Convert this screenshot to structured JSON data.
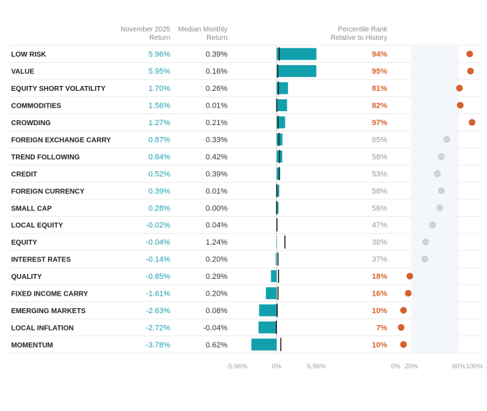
{
  "chart_data": {
    "type": "table",
    "headers": {
      "return_line1": "November 2025",
      "return_line2": "Return",
      "median_line1": "Median Monthly",
      "median_line2": "Return",
      "percentile_line1": "Percentile Rank",
      "percentile_line2": "Relative to History"
    },
    "bar_axis": {
      "range": [
        -5.96,
        5.96
      ],
      "ticks": [
        {
          "value": -5.96,
          "label": "-5.96%"
        },
        {
          "value": 0,
          "label": "0%"
        },
        {
          "value": 5.96,
          "label": "5.96%"
        }
      ]
    },
    "percentile_axis": {
      "range": [
        0,
        100
      ],
      "shaded_band": [
        20,
        80
      ],
      "ticks": [
        {
          "value": 0,
          "label": "0%"
        },
        {
          "value": 20,
          "label": "20%"
        },
        {
          "value": 80,
          "label": "80%"
        },
        {
          "value": 100,
          "label": "100%"
        }
      ]
    },
    "rows": [
      {
        "name": "LOW RISK",
        "return": 5.96,
        "return_label": "5.96%",
        "median": 0.39,
        "median_label": "0.39%",
        "percentile": 94,
        "percentile_label": "94%"
      },
      {
        "name": "VALUE",
        "return": 5.95,
        "return_label": "5.95%",
        "median": 0.16,
        "median_label": "0.16%",
        "percentile": 95,
        "percentile_label": "95%"
      },
      {
        "name": "EQUITY SHORT VOLATILITY",
        "return": 1.7,
        "return_label": "1.70%",
        "median": 0.26,
        "median_label": "0.26%",
        "percentile": 81,
        "percentile_label": "81%"
      },
      {
        "name": "COMMODITIES",
        "return": 1.56,
        "return_label": "1.56%",
        "median": 0.01,
        "median_label": "0.01%",
        "percentile": 82,
        "percentile_label": "82%"
      },
      {
        "name": "CROWDING",
        "return": 1.27,
        "return_label": "1.27%",
        "median": 0.21,
        "median_label": "0.21%",
        "percentile": 97,
        "percentile_label": "97%"
      },
      {
        "name": "FOREIGN EXCHANGE CARRY",
        "return": 0.87,
        "return_label": "0.87%",
        "median": 0.33,
        "median_label": "0.33%",
        "percentile": 65,
        "percentile_label": "65%"
      },
      {
        "name": "TREND FOLLOWING",
        "return": 0.84,
        "return_label": "0.84%",
        "median": 0.42,
        "median_label": "0.42%",
        "percentile": 58,
        "percentile_label": "58%"
      },
      {
        "name": "CREDIT",
        "return": 0.52,
        "return_label": "0.52%",
        "median": 0.39,
        "median_label": "0.39%",
        "percentile": 53,
        "percentile_label": "53%"
      },
      {
        "name": "FOREIGN CURRENCY",
        "return": 0.39,
        "return_label": "0.39%",
        "median": 0.01,
        "median_label": "0.01%",
        "percentile": 58,
        "percentile_label": "58%"
      },
      {
        "name": "SMALL CAP",
        "return": 0.28,
        "return_label": "0.28%",
        "median": 0.0,
        "median_label": "0.00%",
        "percentile": 56,
        "percentile_label": "56%"
      },
      {
        "name": "LOCAL EQUITY",
        "return": -0.02,
        "return_label": "-0.02%",
        "median": 0.04,
        "median_label": "0.04%",
        "percentile": 47,
        "percentile_label": "47%"
      },
      {
        "name": "EQUITY",
        "return": -0.04,
        "return_label": "-0.04%",
        "median": 1.24,
        "median_label": "1.24%",
        "percentile": 38,
        "percentile_label": "38%"
      },
      {
        "name": "INTEREST RATES",
        "return": -0.14,
        "return_label": "-0.14%",
        "median": 0.2,
        "median_label": "0.20%",
        "percentile": 37,
        "percentile_label": "37%"
      },
      {
        "name": "QUALITY",
        "return": -0.85,
        "return_label": "-0.85%",
        "median": 0.29,
        "median_label": "0.29%",
        "percentile": 18,
        "percentile_label": "18%"
      },
      {
        "name": "FIXED INCOME CARRY",
        "return": -1.61,
        "return_label": "-1.61%",
        "median": 0.2,
        "median_label": "0.20%",
        "percentile": 16,
        "percentile_label": "16%"
      },
      {
        "name": "EMERGING MARKETS",
        "return": -2.63,
        "return_label": "-2.63%",
        "median": 0.08,
        "median_label": "0.08%",
        "percentile": 10,
        "percentile_label": "10%"
      },
      {
        "name": "LOCAL INFLATION",
        "return": -2.72,
        "return_label": "-2.72%",
        "median": -0.04,
        "median_label": "-0.04%",
        "percentile": 7,
        "percentile_label": "7%"
      },
      {
        "name": "MOMENTUM",
        "return": -3.78,
        "return_label": "-3.78%",
        "median": 0.62,
        "median_label": "0.62%",
        "percentile": 10,
        "percentile_label": "10%"
      }
    ]
  },
  "colors": {
    "bar": "#12a0ad",
    "return_text": "#1aa0ad",
    "extreme": "#d9622b",
    "neutral_dot": "#d4d4d4",
    "neutral_text": "#9a9a9a",
    "median_marker": "#222222",
    "band": "#f3f6fa",
    "grid": "#ebebeb"
  }
}
